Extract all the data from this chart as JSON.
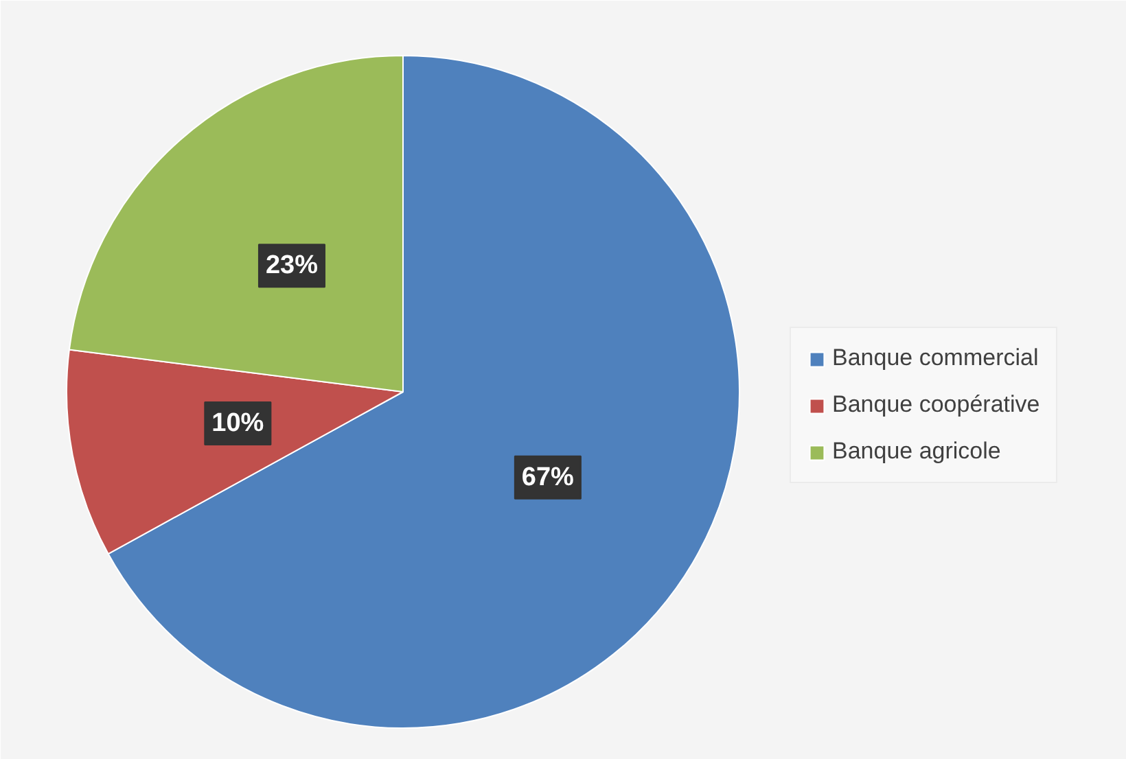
{
  "chart_data": {
    "type": "pie",
    "categories": [
      "Banque commercial",
      "Banque coopérative",
      "Banque agricole"
    ],
    "values": [
      67,
      10,
      23
    ],
    "colors": [
      "#4f81bd",
      "#c0504d",
      "#9bbb59"
    ],
    "value_labels": [
      "67%",
      "10%",
      "23%"
    ],
    "legend": "right"
  }
}
